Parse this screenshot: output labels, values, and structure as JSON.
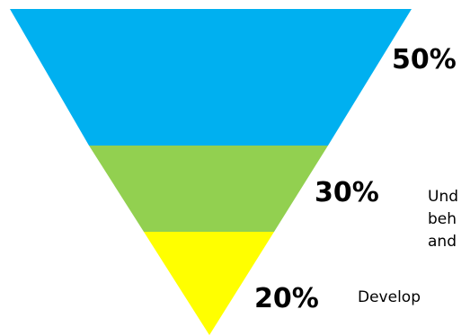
{
  "funnel": {
    "layers": [
      {
        "percent": "50%",
        "share": 50,
        "color": "#00b0f0",
        "description": []
      },
      {
        "percent": "30%",
        "share": 30,
        "color": "#92d050",
        "description": [
          "Und",
          "beh",
          "and"
        ]
      },
      {
        "percent": "20%",
        "share": 20,
        "color": "#ffff00",
        "description": [
          "Develop"
        ]
      }
    ]
  }
}
